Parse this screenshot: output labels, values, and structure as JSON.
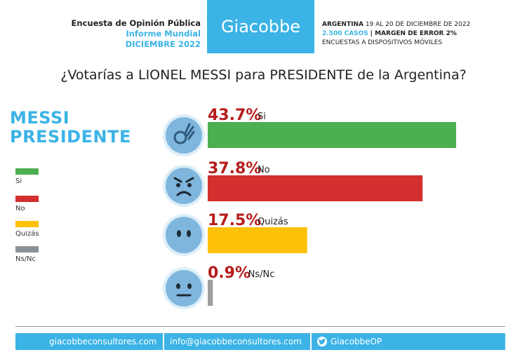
{
  "header": {
    "left_line1": "Encuesta de Opinión Pública",
    "left_line2": "Informe Mundial",
    "left_line3": "DICIEMBRE 2022",
    "brand": "Giacobbe",
    "right_line1_bold": "ARGENTINA",
    "right_line1_rest": "19 AL 20 DE DICIEMBRE DE 2022",
    "right_line2_blue": "2.500 CASOS",
    "right_line2_rest": "| MARGEN DE ERROR 2%",
    "right_line3": "ENCUESTAS A DISPOSITIVOS MÓVILES"
  },
  "side_title_line1": "MESSI",
  "side_title_line2": "PRESIDENTE",
  "legend": [
    {
      "label": "Si",
      "color": "#4caf50"
    },
    {
      "label": "No",
      "color": "#d32f2f"
    },
    {
      "label": "Quizás",
      "color": "#ffc107"
    },
    {
      "label": "Ns/Nc",
      "color": "#9e9e9e"
    }
  ],
  "chart_data": {
    "type": "bar",
    "orientation": "horizontal",
    "title": "¿Votarías a LIONEL MESSI para PRESIDENTE de la Argentina?",
    "categories": [
      "Si",
      "No",
      "Quizás",
      "Ns/Nc"
    ],
    "values": [
      43.7,
      37.8,
      17.5,
      0.9
    ],
    "value_labels": [
      "43.7%",
      "37.8%",
      "17.5%",
      "0.9%"
    ],
    "colors": [
      "#4caf50",
      "#d32f2f",
      "#ffc107",
      "#9e9e9e"
    ],
    "icons": [
      "ok-hand-emoji-icon",
      "angry-face-icon",
      "surprised-face-icon",
      "neutral-face-icon"
    ],
    "xlim": [
      0,
      45
    ],
    "legend_position": "left"
  },
  "footer": {
    "website": "giacobbeconsultores.com",
    "email": "info@giacobbeconsultores.com",
    "twitter": "GiacobbeOP"
  },
  "colors": {
    "brand_blue": "#3bb3e6",
    "value_red": "#b71c1c"
  }
}
